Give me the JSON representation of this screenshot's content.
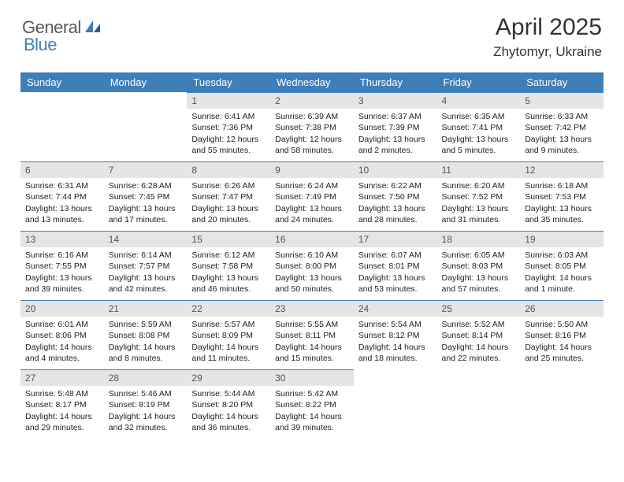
{
  "logo": {
    "part1": "General",
    "part2": "Blue",
    "icon_color": "#3e7fb8"
  },
  "header": {
    "title": "April 2025",
    "location": "Zhytomyr, Ukraine"
  },
  "colors": {
    "header_bg": "#3e7fb8",
    "header_text": "#ffffff",
    "daynum_bg": "#e5e5e5",
    "daynum_border": "#3e7fb8",
    "body_text": "#222222",
    "logo_gray": "#5a5a5a"
  },
  "weekdays": [
    "Sunday",
    "Monday",
    "Tuesday",
    "Wednesday",
    "Thursday",
    "Friday",
    "Saturday"
  ],
  "weeks": [
    [
      null,
      null,
      {
        "n": "1",
        "sunrise": "Sunrise: 6:41 AM",
        "sunset": "Sunset: 7:36 PM",
        "daylight": "Daylight: 12 hours and 55 minutes."
      },
      {
        "n": "2",
        "sunrise": "Sunrise: 6:39 AM",
        "sunset": "Sunset: 7:38 PM",
        "daylight": "Daylight: 12 hours and 58 minutes."
      },
      {
        "n": "3",
        "sunrise": "Sunrise: 6:37 AM",
        "sunset": "Sunset: 7:39 PM",
        "daylight": "Daylight: 13 hours and 2 minutes."
      },
      {
        "n": "4",
        "sunrise": "Sunrise: 6:35 AM",
        "sunset": "Sunset: 7:41 PM",
        "daylight": "Daylight: 13 hours and 5 minutes."
      },
      {
        "n": "5",
        "sunrise": "Sunrise: 6:33 AM",
        "sunset": "Sunset: 7:42 PM",
        "daylight": "Daylight: 13 hours and 9 minutes."
      }
    ],
    [
      {
        "n": "6",
        "sunrise": "Sunrise: 6:31 AM",
        "sunset": "Sunset: 7:44 PM",
        "daylight": "Daylight: 13 hours and 13 minutes."
      },
      {
        "n": "7",
        "sunrise": "Sunrise: 6:28 AM",
        "sunset": "Sunset: 7:45 PM",
        "daylight": "Daylight: 13 hours and 17 minutes."
      },
      {
        "n": "8",
        "sunrise": "Sunrise: 6:26 AM",
        "sunset": "Sunset: 7:47 PM",
        "daylight": "Daylight: 13 hours and 20 minutes."
      },
      {
        "n": "9",
        "sunrise": "Sunrise: 6:24 AM",
        "sunset": "Sunset: 7:49 PM",
        "daylight": "Daylight: 13 hours and 24 minutes."
      },
      {
        "n": "10",
        "sunrise": "Sunrise: 6:22 AM",
        "sunset": "Sunset: 7:50 PM",
        "daylight": "Daylight: 13 hours and 28 minutes."
      },
      {
        "n": "11",
        "sunrise": "Sunrise: 6:20 AM",
        "sunset": "Sunset: 7:52 PM",
        "daylight": "Daylight: 13 hours and 31 minutes."
      },
      {
        "n": "12",
        "sunrise": "Sunrise: 6:18 AM",
        "sunset": "Sunset: 7:53 PM",
        "daylight": "Daylight: 13 hours and 35 minutes."
      }
    ],
    [
      {
        "n": "13",
        "sunrise": "Sunrise: 6:16 AM",
        "sunset": "Sunset: 7:55 PM",
        "daylight": "Daylight: 13 hours and 39 minutes."
      },
      {
        "n": "14",
        "sunrise": "Sunrise: 6:14 AM",
        "sunset": "Sunset: 7:57 PM",
        "daylight": "Daylight: 13 hours and 42 minutes."
      },
      {
        "n": "15",
        "sunrise": "Sunrise: 6:12 AM",
        "sunset": "Sunset: 7:58 PM",
        "daylight": "Daylight: 13 hours and 46 minutes."
      },
      {
        "n": "16",
        "sunrise": "Sunrise: 6:10 AM",
        "sunset": "Sunset: 8:00 PM",
        "daylight": "Daylight: 13 hours and 50 minutes."
      },
      {
        "n": "17",
        "sunrise": "Sunrise: 6:07 AM",
        "sunset": "Sunset: 8:01 PM",
        "daylight": "Daylight: 13 hours and 53 minutes."
      },
      {
        "n": "18",
        "sunrise": "Sunrise: 6:05 AM",
        "sunset": "Sunset: 8:03 PM",
        "daylight": "Daylight: 13 hours and 57 minutes."
      },
      {
        "n": "19",
        "sunrise": "Sunrise: 6:03 AM",
        "sunset": "Sunset: 8:05 PM",
        "daylight": "Daylight: 14 hours and 1 minute."
      }
    ],
    [
      {
        "n": "20",
        "sunrise": "Sunrise: 6:01 AM",
        "sunset": "Sunset: 8:06 PM",
        "daylight": "Daylight: 14 hours and 4 minutes."
      },
      {
        "n": "21",
        "sunrise": "Sunrise: 5:59 AM",
        "sunset": "Sunset: 8:08 PM",
        "daylight": "Daylight: 14 hours and 8 minutes."
      },
      {
        "n": "22",
        "sunrise": "Sunrise: 5:57 AM",
        "sunset": "Sunset: 8:09 PM",
        "daylight": "Daylight: 14 hours and 11 minutes."
      },
      {
        "n": "23",
        "sunrise": "Sunrise: 5:55 AM",
        "sunset": "Sunset: 8:11 PM",
        "daylight": "Daylight: 14 hours and 15 minutes."
      },
      {
        "n": "24",
        "sunrise": "Sunrise: 5:54 AM",
        "sunset": "Sunset: 8:12 PM",
        "daylight": "Daylight: 14 hours and 18 minutes."
      },
      {
        "n": "25",
        "sunrise": "Sunrise: 5:52 AM",
        "sunset": "Sunset: 8:14 PM",
        "daylight": "Daylight: 14 hours and 22 minutes."
      },
      {
        "n": "26",
        "sunrise": "Sunrise: 5:50 AM",
        "sunset": "Sunset: 8:16 PM",
        "daylight": "Daylight: 14 hours and 25 minutes."
      }
    ],
    [
      {
        "n": "27",
        "sunrise": "Sunrise: 5:48 AM",
        "sunset": "Sunset: 8:17 PM",
        "daylight": "Daylight: 14 hours and 29 minutes."
      },
      {
        "n": "28",
        "sunrise": "Sunrise: 5:46 AM",
        "sunset": "Sunset: 8:19 PM",
        "daylight": "Daylight: 14 hours and 32 minutes."
      },
      {
        "n": "29",
        "sunrise": "Sunrise: 5:44 AM",
        "sunset": "Sunset: 8:20 PM",
        "daylight": "Daylight: 14 hours and 36 minutes."
      },
      {
        "n": "30",
        "sunrise": "Sunrise: 5:42 AM",
        "sunset": "Sunset: 8:22 PM",
        "daylight": "Daylight: 14 hours and 39 minutes."
      },
      null,
      null,
      null
    ]
  ]
}
